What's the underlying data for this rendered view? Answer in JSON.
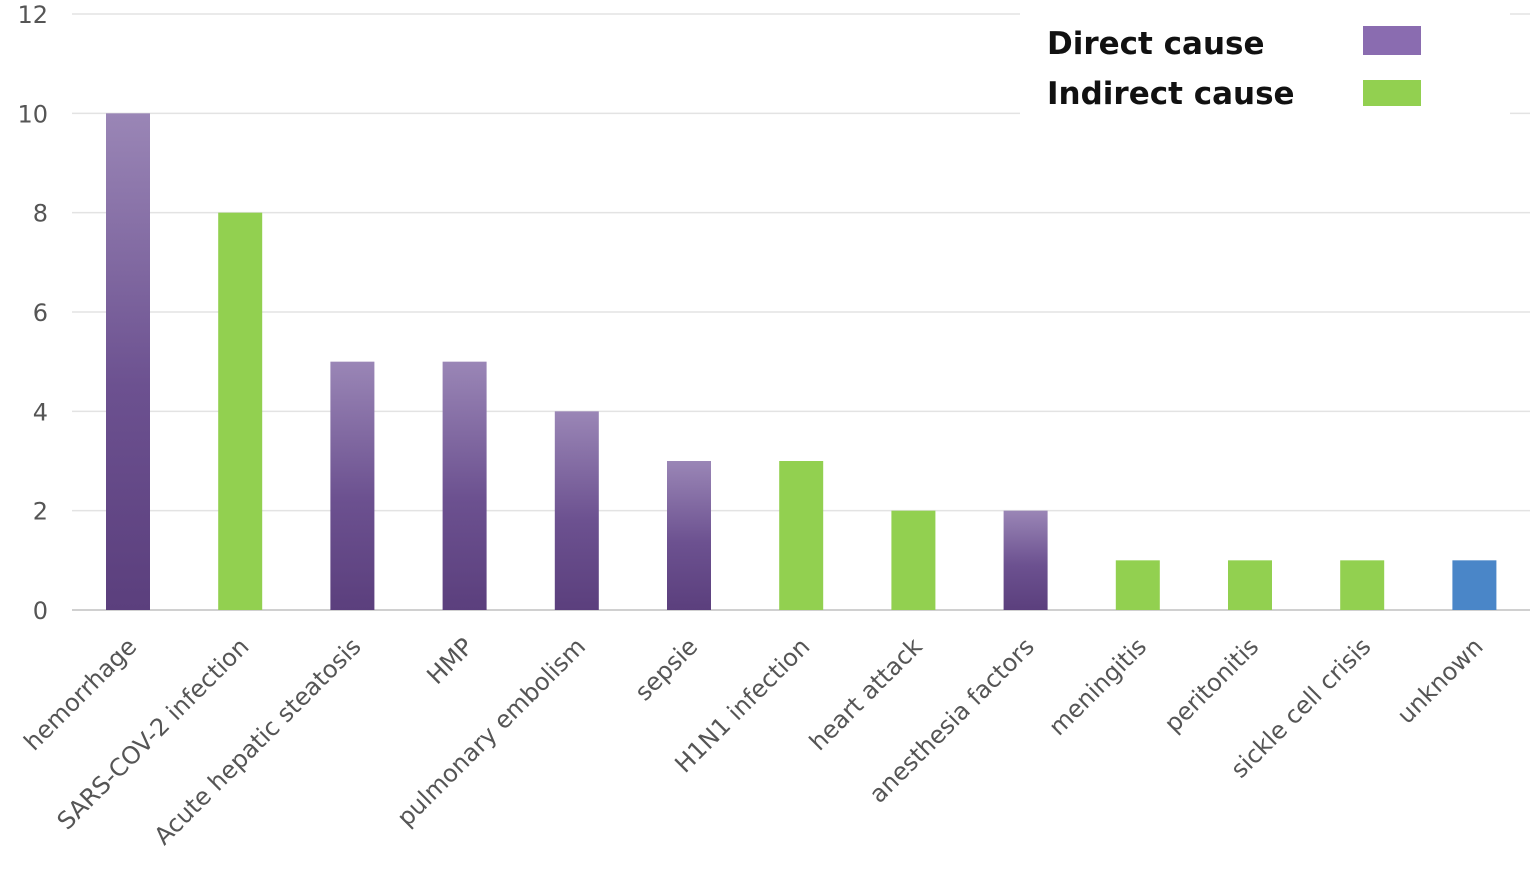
{
  "chart_data": {
    "type": "bar",
    "categories": [
      "hemorrhage",
      "SARS-COV-2 infection",
      "Acute hepatic steatosis",
      "HMP",
      "pulmonary embolism",
      "sepsie",
      "H1N1 infection",
      "heart attack",
      "anesthesia factors",
      "meningitis",
      "peritonitis",
      "sickle cell crisis",
      "unknown"
    ],
    "values": [
      10,
      8,
      5,
      5,
      4,
      3,
      3,
      2,
      2,
      1,
      1,
      1,
      1
    ],
    "groups": [
      "direct",
      "indirect",
      "direct",
      "direct",
      "direct",
      "direct",
      "indirect",
      "indirect",
      "direct",
      "indirect",
      "indirect",
      "indirect",
      "unknown"
    ],
    "ylim": [
      0,
      12
    ],
    "yticks": [
      0,
      2,
      4,
      6,
      8,
      10,
      12
    ],
    "grid": true,
    "legend": {
      "position": "top-right",
      "entries": [
        {
          "key": "direct",
          "label": "Direct cause"
        },
        {
          "key": "indirect",
          "label": "Indirect cause"
        }
      ]
    },
    "colors": {
      "direct_top": "#9a86b6",
      "direct_bottom": "#5b3f7d",
      "direct_mid": "#6c5190",
      "legend_direct": "#8a6cb0",
      "indirect": "#92d050",
      "unknown": "#4a86c8",
      "grid": "#e3e3e3",
      "axis": "#d0d0d0"
    }
  }
}
